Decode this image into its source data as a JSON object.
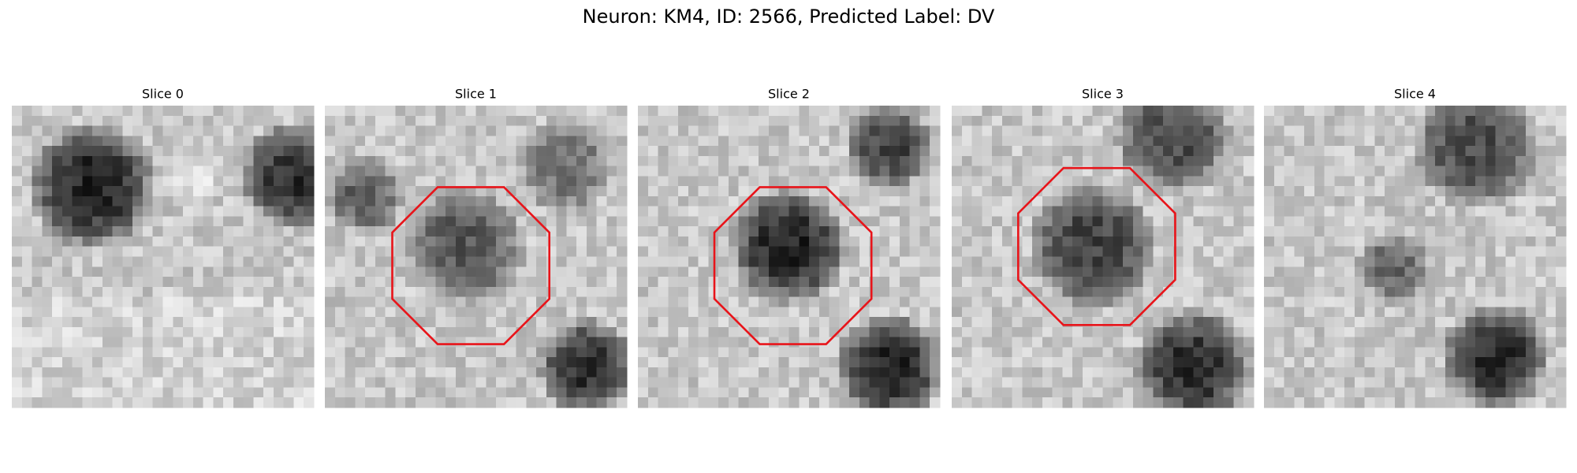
{
  "title": "Neuron: KM4, ID: 2566, Predicted Label: DV",
  "panels": [
    {
      "title": "Slice 0"
    },
    {
      "title": "Slice 1"
    },
    {
      "title": "Slice 2"
    },
    {
      "title": "Slice 3"
    },
    {
      "title": "Slice 4"
    }
  ]
}
